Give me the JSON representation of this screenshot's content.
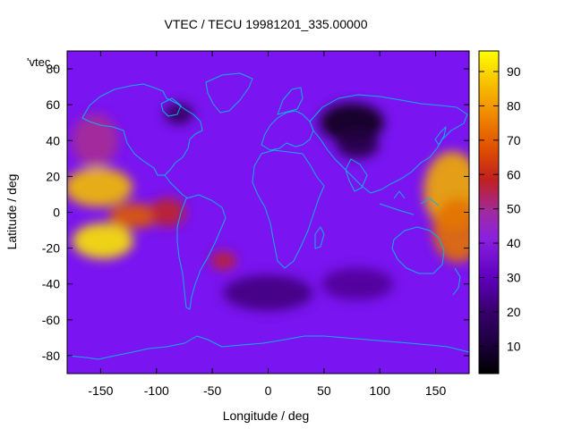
{
  "plot": {
    "title": "VTEC / TECU 19981201_335.00000",
    "series_tag": "'vtec_",
    "xlabel": "Longitude / deg",
    "ylabel": "Latitude / deg",
    "x_ticks": [
      "-150",
      "-100",
      "-50",
      "0",
      "50",
      "100",
      "150"
    ],
    "y_ticks": [
      "80",
      "60",
      "40",
      "20",
      "0",
      "-20",
      "-40",
      "-60",
      "-80"
    ],
    "colorbar_ticks": [
      "90",
      "80",
      "70",
      "60",
      "50",
      "40",
      "30",
      "20",
      "10"
    ]
  },
  "chart_data": {
    "type": "heatmap",
    "title": "VTEC / TECU 19981201_335.00000",
    "xlabel": "Longitude / deg",
    "ylabel": "Latitude / deg",
    "xlim": [
      -180,
      180
    ],
    "ylim": [
      -90,
      90
    ],
    "x_ticks": [
      -150,
      -100,
      -50,
      0,
      50,
      100,
      150
    ],
    "y_ticks": [
      -80,
      -60,
      -40,
      -20,
      0,
      20,
      40,
      60,
      80
    ],
    "colorbar": {
      "range": [
        2,
        96
      ],
      "ticks": [
        10,
        20,
        30,
        40,
        50,
        60,
        70,
        80,
        90
      ],
      "colormap": [
        "#000000",
        "#3a0070",
        "#7a10e0",
        "#a030b0",
        "#c02020",
        "#e06000",
        "#f0b000",
        "#ffff00"
      ]
    },
    "grid": false,
    "features": [
      {
        "lon": -152,
        "lat": 14,
        "value": 85
      },
      {
        "lon": -148,
        "lat": -16,
        "value": 92
      },
      {
        "lon": -120,
        "lat": -2,
        "value": 68
      },
      {
        "lon": -155,
        "lat": 40,
        "value": 45
      },
      {
        "lon": -90,
        "lat": 0,
        "value": 55
      },
      {
        "lon": -40,
        "lat": -27,
        "value": 55
      },
      {
        "lon": 165,
        "lat": 12,
        "value": 82
      },
      {
        "lon": 170,
        "lat": -10,
        "value": 72
      },
      {
        "lon": 75,
        "lat": 50,
        "value": 5
      },
      {
        "lon": 80,
        "lat": 38,
        "value": 10
      },
      {
        "lon": -80,
        "lat": 55,
        "value": 12
      },
      {
        "lon": 0,
        "lat": -45,
        "value": 17
      },
      {
        "lon": 80,
        "lat": -40,
        "value": 20
      }
    ],
    "background_value": 25,
    "overlay": "coastlines"
  }
}
